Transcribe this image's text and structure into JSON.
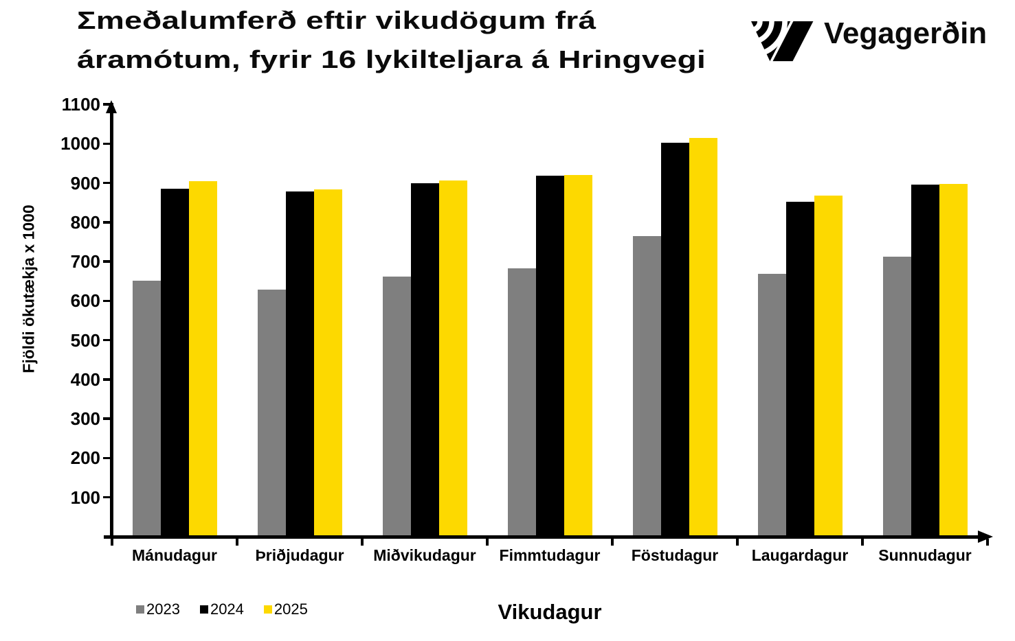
{
  "page": {
    "background": "#FFFFFF",
    "text_color": "#000000"
  },
  "header": {
    "title_line1": "Σmeðalumferð eftir vikudögum frá",
    "title_line2": "áramótum, fyrir 16 lykilteljara á Hringvegi"
  },
  "logo": {
    "text": "Vegagerðin",
    "mark": "striped-road-v-mark",
    "color": "#000000"
  },
  "chart_data": {
    "type": "bar",
    "title": "Σmeðalumferð eftir vikudögum frá áramótum, fyrir 16 lykilteljara á Hringvegi",
    "xlabel": "Vikudagur",
    "ylabel": "Fjöldi ökutækja x 1000",
    "categories": [
      "Mánudagur",
      "Þriðjudagur",
      "Miðvikudagur",
      "Fimmtudagur",
      "Föstudagur",
      "Laugardagur",
      "Sunnudagur"
    ],
    "series": [
      {
        "name": "2023",
        "color": "#7F7F7F",
        "values": [
          651,
          628,
          662,
          682,
          765,
          669,
          713
        ]
      },
      {
        "name": "2024",
        "color": "#000000",
        "values": [
          886,
          878,
          899,
          919,
          1002,
          852,
          896
        ]
      },
      {
        "name": "2025",
        "color": "#FDD900",
        "values": [
          905,
          883,
          906,
          921,
          1015,
          868,
          897
        ]
      }
    ],
    "ylim": [
      0,
      1100
    ],
    "ytick_step": 100,
    "yticks": [
      100,
      200,
      300,
      400,
      500,
      600,
      700,
      800,
      900,
      1000,
      1100
    ],
    "grid": false,
    "legend_position": "bottom-left",
    "axis_arrows": true
  }
}
